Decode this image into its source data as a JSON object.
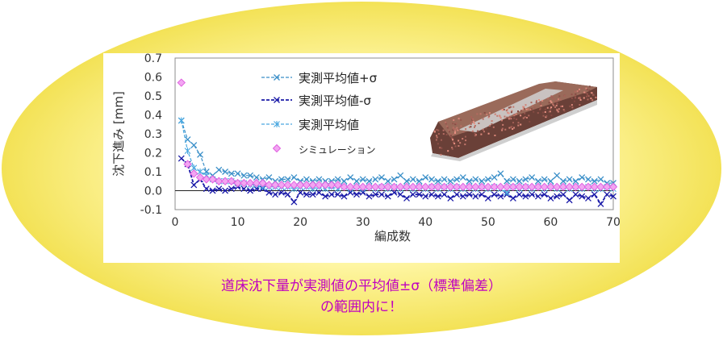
{
  "caption": {
    "line1": "道床沈下量が実測値の平均値±σ（標準偏差）",
    "line2": "の範囲内に！"
  },
  "colors": {
    "ellipse_center": "#fffde8",
    "ellipse_mid": "#fff7a8",
    "ellipse_edge": "#f3e256",
    "caption": "#c000c0",
    "plus_sigma": "#3a8fc8",
    "minus_sigma": "#1a1aa8",
    "mean": "#4aa8e0",
    "simulation": "#e060e0"
  },
  "image": {
    "name": "ballast-bed-3d-model"
  },
  "chart_data": {
    "type": "line",
    "xlabel": "編成数",
    "ylabel": "沈下進み [mm]",
    "xlim": [
      0,
      70
    ],
    "ylim": [
      -0.1,
      0.7
    ],
    "xticks": [
      0,
      10,
      20,
      30,
      40,
      50,
      60,
      70
    ],
    "yticks": [
      -0.1,
      0.0,
      0.1,
      0.2,
      0.3,
      0.4,
      0.5,
      0.6,
      0.7
    ],
    "ytick_labels": [
      "-0.1",
      "0.0",
      "0.1",
      "0.2",
      "0.3",
      "0.4",
      "0.5",
      "0.6",
      "0.7"
    ],
    "grid": false,
    "legend_position": "upper-center",
    "series": [
      {
        "name": "実測平均値+σ",
        "marker": "x",
        "dash": true,
        "values": [
          0.37,
          0.27,
          0.24,
          0.19,
          0.1,
          0.08,
          0.11,
          0.1,
          0.09,
          0.09,
          0.08,
          0.08,
          0.07,
          0.06,
          0.07,
          0.05,
          0.06,
          0.06,
          0.07,
          0.05,
          0.06,
          0.05,
          0.06,
          0.05,
          0.05,
          0.06,
          0.05,
          0.07,
          0.05,
          0.06,
          0.05,
          0.06,
          0.07,
          0.05,
          0.06,
          0.08,
          0.05,
          0.06,
          0.05,
          0.07,
          0.06,
          0.05,
          0.06,
          0.05,
          0.06,
          0.07,
          0.05,
          0.06,
          0.05,
          0.06,
          0.07,
          0.09,
          0.05,
          0.06,
          0.05,
          0.06,
          0.07,
          0.05,
          0.06,
          0.05,
          0.08,
          0.05,
          0.06,
          0.05,
          0.07,
          0.06,
          0.05,
          0.06,
          0.04,
          0.04
        ]
      },
      {
        "name": "実測平均値-σ",
        "marker": "x",
        "dash": true,
        "values": [
          0.17,
          0.14,
          0.03,
          0.06,
          0.01,
          0.0,
          0.01,
          0.0,
          0.01,
          0.02,
          0.01,
          0.0,
          0.01,
          0.01,
          -0.01,
          -0.02,
          -0.01,
          -0.02,
          -0.06,
          -0.01,
          -0.02,
          -0.02,
          -0.01,
          -0.03,
          -0.02,
          -0.02,
          -0.03,
          -0.01,
          -0.02,
          -0.01,
          -0.03,
          -0.02,
          -0.02,
          -0.03,
          -0.01,
          -0.02,
          -0.04,
          -0.02,
          -0.02,
          -0.03,
          -0.02,
          -0.03,
          -0.02,
          -0.04,
          -0.02,
          -0.03,
          -0.02,
          -0.03,
          -0.02,
          -0.04,
          -0.02,
          -0.03,
          -0.02,
          -0.04,
          -0.02,
          -0.03,
          -0.02,
          -0.03,
          -0.02,
          -0.04,
          -0.03,
          -0.02,
          -0.05,
          -0.02,
          -0.03,
          -0.04,
          -0.02,
          -0.07,
          -0.02,
          -0.03
        ]
      },
      {
        "name": "実測平均値",
        "marker": "asterisk",
        "dash": true,
        "values": [
          0.37,
          0.21,
          0.12,
          0.1,
          0.08,
          0.06,
          0.05,
          0.05,
          0.05,
          0.04,
          0.04,
          0.03,
          0.03,
          0.02,
          0.02,
          0.02,
          0.02,
          0.02,
          0.01,
          0.02,
          0.02,
          0.01,
          0.02,
          0.01,
          0.02,
          0.01,
          0.02,
          0.01,
          0.02,
          0.01,
          0.02,
          0.01,
          0.02,
          0.01,
          0.02,
          0.01,
          0.02,
          0.01,
          0.02,
          0.01,
          0.02,
          0.01,
          0.02,
          0.01,
          0.02,
          0.01,
          0.02,
          0.01,
          0.02,
          0.01,
          0.02,
          0.01,
          -0.01,
          0.02,
          0.01,
          0.02,
          0.01,
          0.02,
          0.01,
          0.02,
          0.01,
          0.02,
          0.01,
          0.02,
          0.01,
          0.02,
          0.01,
          0.01,
          0.02,
          0.01
        ]
      },
      {
        "name": "シミュレーション",
        "marker": "diamond",
        "dash": false,
        "values": [
          0.57,
          0.14,
          0.09,
          0.07,
          0.06,
          0.06,
          0.05,
          0.05,
          0.05,
          0.04,
          0.04,
          0.04,
          0.04,
          0.04,
          0.03,
          0.03,
          0.03,
          0.03,
          0.03,
          0.03,
          0.03,
          0.03,
          0.03,
          0.03,
          0.03,
          0.03,
          0.02,
          0.02,
          0.02,
          0.02,
          0.02,
          0.02,
          0.02,
          0.02,
          0.02,
          0.02,
          0.02,
          0.02,
          0.02,
          0.02,
          0.02,
          0.02,
          0.02,
          0.02,
          0.02,
          0.02,
          0.02,
          0.02,
          0.02,
          0.02,
          0.02,
          0.02,
          0.02,
          0.02,
          0.02,
          0.02,
          0.02,
          0.02,
          0.02,
          0.02,
          0.02,
          0.02,
          0.02,
          0.02,
          0.02,
          0.02,
          0.02,
          0.02,
          0.02,
          0.02
        ]
      }
    ]
  }
}
